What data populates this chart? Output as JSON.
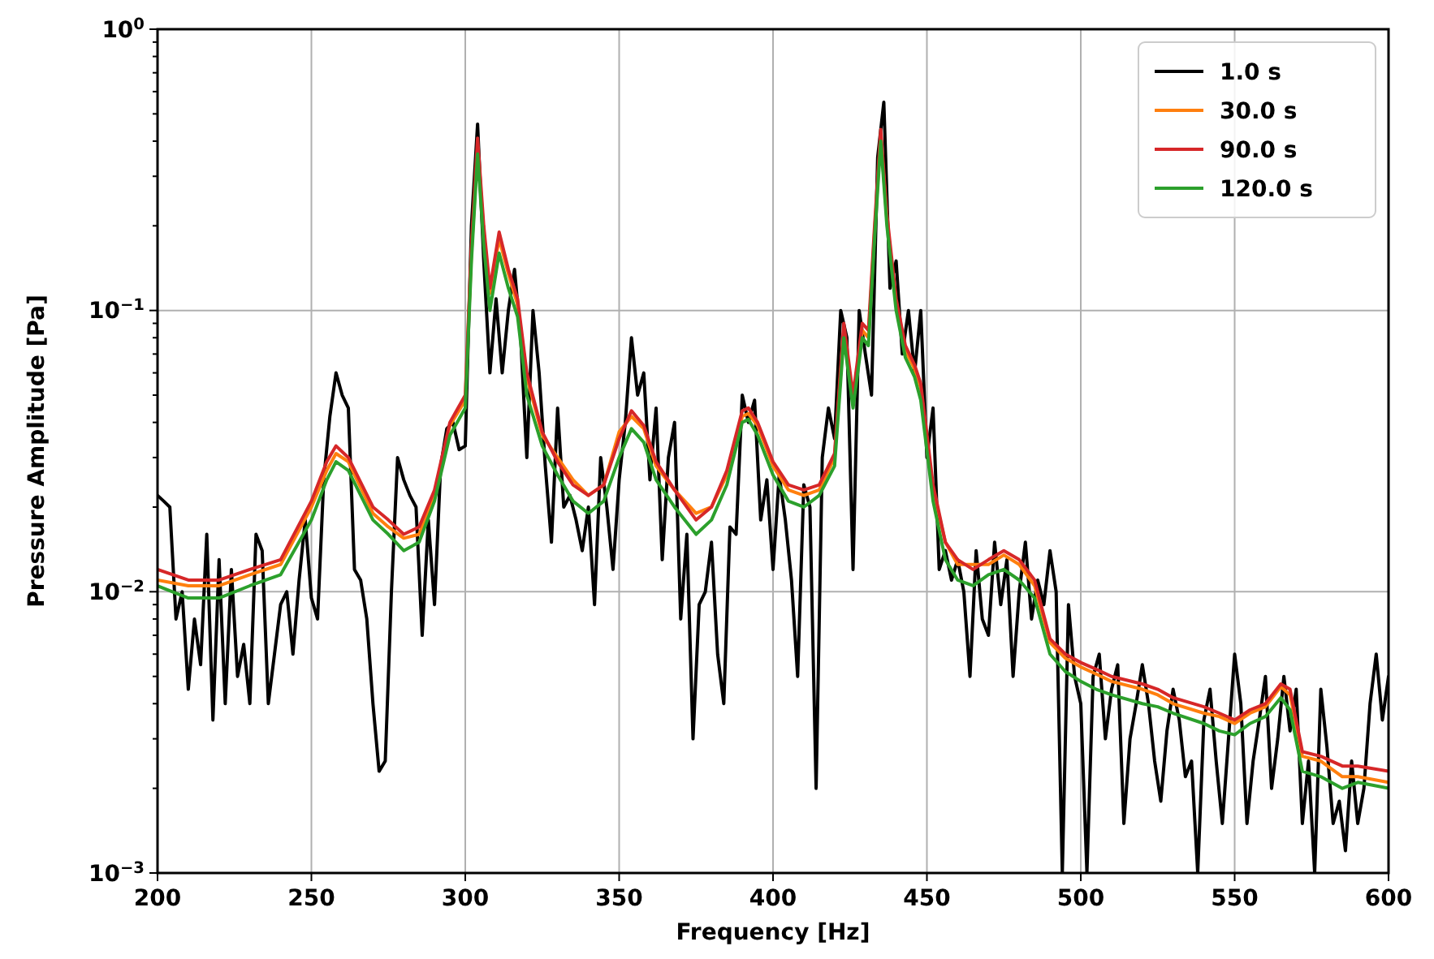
{
  "chart_data": {
    "type": "line",
    "xlabel": "Frequency [Hz]",
    "ylabel": "Pressure Amplitude [Pa]",
    "log": "y",
    "grid": true,
    "legend": "top right",
    "line_style": "solid",
    "xlim": [
      200,
      600
    ],
    "xticks": [
      200,
      250,
      300,
      350,
      400,
      450,
      500,
      550,
      600
    ],
    "ylim": [
      0.001,
      1
    ],
    "yticks": [
      {
        "value": 0.001,
        "label": "10$^{−3}$"
      },
      {
        "value": 0.002,
        "label": null
      },
      {
        "value": 0.003,
        "label": null
      },
      {
        "value": 0.004,
        "label": null
      },
      {
        "value": 0.005,
        "label": null
      },
      {
        "value": 0.006,
        "label": null
      },
      {
        "value": 0.007,
        "label": null
      },
      {
        "value": 0.008,
        "label": null
      },
      {
        "value": 0.009,
        "label": null
      },
      {
        "value": 0.01,
        "label": "10$^{−2}$"
      },
      {
        "value": 0.02,
        "label": null
      },
      {
        "value": 0.03,
        "label": null
      },
      {
        "value": 0.04,
        "label": null
      },
      {
        "value": 0.05,
        "label": null
      },
      {
        "value": 0.06,
        "label": null
      },
      {
        "value": 0.07,
        "label": null
      },
      {
        "value": 0.08,
        "label": null
      },
      {
        "value": 0.09,
        "label": null
      },
      {
        "value": 0.1,
        "label": "10$^{−1}$"
      },
      {
        "value": 0.2,
        "label": null
      },
      {
        "value": 0.3,
        "label": null
      },
      {
        "value": 0.4,
        "label": null
      },
      {
        "value": 0.5,
        "label": null
      },
      {
        "value": 0.6,
        "label": null
      },
      {
        "value": 0.7,
        "label": null
      },
      {
        "value": 0.8,
        "label": null
      },
      {
        "value": 0.9,
        "label": null
      },
      {
        "value": 1,
        "label": "10$^{0}$"
      }
    ],
    "series": [
      {
        "name": "1.0 s",
        "color": "#000000",
        "x": [
          200,
          202,
          204,
          206,
          208,
          210,
          212,
          214,
          216,
          218,
          220,
          222,
          224,
          226,
          228,
          230,
          232,
          234,
          236,
          238,
          240,
          242,
          244,
          246,
          248,
          250,
          252,
          254,
          256,
          258,
          260,
          262,
          264,
          266,
          268,
          270,
          272,
          274,
          276,
          278,
          280,
          282,
          284,
          286,
          288,
          290,
          292,
          294,
          296,
          298,
          300,
          302,
          304,
          306,
          308,
          310,
          312,
          314,
          316,
          318,
          320,
          322,
          324,
          326,
          328,
          330,
          332,
          334,
          336,
          338,
          340,
          342,
          344,
          346,
          348,
          350,
          352,
          354,
          356,
          358,
          360,
          362,
          364,
          366,
          368,
          370,
          372,
          374,
          376,
          378,
          380,
          382,
          384,
          386,
          388,
          390,
          392,
          394,
          396,
          398,
          400,
          402,
          404,
          406,
          408,
          410,
          412,
          414,
          416,
          418,
          420,
          422,
          424,
          426,
          428,
          430,
          432,
          434,
          436,
          438,
          440,
          442,
          444,
          446,
          448,
          450,
          452,
          454,
          456,
          458,
          460,
          462,
          464,
          466,
          468,
          470,
          472,
          474,
          476,
          478,
          480,
          482,
          484,
          486,
          488,
          490,
          492,
          494,
          496,
          498,
          500,
          502,
          504,
          506,
          508,
          510,
          512,
          514,
          516,
          518,
          520,
          522,
          524,
          526,
          528,
          530,
          532,
          534,
          536,
          538,
          540,
          542,
          544,
          546,
          548,
          550,
          552,
          554,
          556,
          558,
          560,
          562,
          564,
          566,
          568,
          570,
          572,
          574,
          576,
          578,
          580,
          582,
          584,
          586,
          588,
          590,
          592,
          594,
          596,
          598,
          600
        ],
        "values": [
          0.022,
          0.021,
          0.02,
          0.008,
          0.01,
          0.0045,
          0.008,
          0.0055,
          0.016,
          0.0035,
          0.013,
          0.004,
          0.012,
          0.005,
          0.0065,
          0.004,
          0.016,
          0.014,
          0.004,
          0.006,
          0.009,
          0.01,
          0.006,
          0.011,
          0.018,
          0.0095,
          0.008,
          0.025,
          0.042,
          0.06,
          0.05,
          0.045,
          0.012,
          0.011,
          0.008,
          0.004,
          0.0023,
          0.0025,
          0.01,
          0.03,
          0.025,
          0.022,
          0.02,
          0.007,
          0.018,
          0.009,
          0.028,
          0.038,
          0.04,
          0.032,
          0.033,
          0.2,
          0.46,
          0.15,
          0.06,
          0.11,
          0.06,
          0.1,
          0.14,
          0.08,
          0.03,
          0.1,
          0.06,
          0.028,
          0.015,
          0.045,
          0.02,
          0.022,
          0.018,
          0.014,
          0.02,
          0.009,
          0.03,
          0.02,
          0.012,
          0.025,
          0.04,
          0.08,
          0.05,
          0.06,
          0.025,
          0.045,
          0.013,
          0.03,
          0.04,
          0.008,
          0.016,
          0.003,
          0.009,
          0.01,
          0.015,
          0.006,
          0.004,
          0.017,
          0.016,
          0.05,
          0.04,
          0.048,
          0.018,
          0.025,
          0.012,
          0.026,
          0.018,
          0.011,
          0.005,
          0.024,
          0.02,
          0.002,
          0.03,
          0.045,
          0.035,
          0.1,
          0.08,
          0.012,
          0.1,
          0.07,
          0.05,
          0.35,
          0.55,
          0.12,
          0.15,
          0.07,
          0.1,
          0.06,
          0.1,
          0.03,
          0.045,
          0.012,
          0.014,
          0.011,
          0.013,
          0.01,
          0.005,
          0.014,
          0.008,
          0.007,
          0.015,
          0.009,
          0.013,
          0.005,
          0.01,
          0.015,
          0.008,
          0.011,
          0.009,
          0.014,
          0.01,
          0.001,
          0.009,
          0.005,
          0.004,
          0.001,
          0.005,
          0.006,
          0.003,
          0.0045,
          0.0055,
          0.0015,
          0.003,
          0.004,
          0.0055,
          0.004,
          0.0025,
          0.0018,
          0.0032,
          0.0045,
          0.0035,
          0.0022,
          0.0025,
          0.001,
          0.0035,
          0.0045,
          0.0025,
          0.0015,
          0.003,
          0.006,
          0.004,
          0.0015,
          0.0025,
          0.0035,
          0.005,
          0.002,
          0.003,
          0.005,
          0.0032,
          0.0045,
          0.0015,
          0.0025,
          0.001,
          0.0045,
          0.0028,
          0.0015,
          0.0018,
          0.0012,
          0.0025,
          0.0015,
          0.002,
          0.004,
          0.006,
          0.0035,
          0.005
        ]
      },
      {
        "name": "30.0 s",
        "color": "#ff7f0e",
        "x": [
          200,
          210,
          220,
          230,
          240,
          250,
          255,
          258,
          262,
          270,
          275,
          280,
          285,
          290,
          295,
          300,
          302,
          304,
          306,
          308,
          311,
          314,
          317,
          320,
          325,
          330,
          335,
          340,
          345,
          350,
          354,
          358,
          362,
          368,
          375,
          380,
          385,
          390,
          392,
          395,
          400,
          405,
          410,
          415,
          420,
          423,
          426,
          429,
          431,
          433,
          435,
          437,
          440,
          443,
          446,
          448,
          452,
          456,
          460,
          465,
          470,
          475,
          480,
          485,
          490,
          495,
          500,
          505,
          510,
          520,
          525,
          530,
          540,
          545,
          550,
          555,
          560,
          565,
          568,
          572,
          578,
          585,
          590,
          600
        ],
        "values": [
          0.011,
          0.0105,
          0.0105,
          0.0115,
          0.0125,
          0.02,
          0.027,
          0.031,
          0.029,
          0.019,
          0.017,
          0.0155,
          0.016,
          0.022,
          0.039,
          0.048,
          0.16,
          0.38,
          0.19,
          0.115,
          0.18,
          0.135,
          0.105,
          0.058,
          0.036,
          0.03,
          0.025,
          0.022,
          0.024,
          0.037,
          0.042,
          0.038,
          0.028,
          0.023,
          0.019,
          0.02,
          0.026,
          0.042,
          0.043,
          0.039,
          0.028,
          0.023,
          0.022,
          0.023,
          0.03,
          0.085,
          0.048,
          0.085,
          0.08,
          0.19,
          0.42,
          0.21,
          0.105,
          0.072,
          0.062,
          0.053,
          0.023,
          0.015,
          0.0125,
          0.0125,
          0.0125,
          0.0135,
          0.0125,
          0.0105,
          0.0066,
          0.0058,
          0.0054,
          0.0051,
          0.0048,
          0.0045,
          0.0043,
          0.004,
          0.0037,
          0.0036,
          0.0034,
          0.0037,
          0.0039,
          0.0046,
          0.0043,
          0.0026,
          0.0025,
          0.0022,
          0.0022,
          0.0021
        ]
      },
      {
        "name": "90.0 s",
        "color": "#d62728",
        "x": [
          200,
          210,
          220,
          230,
          240,
          250,
          255,
          258,
          262,
          270,
          275,
          280,
          285,
          290,
          295,
          300,
          302,
          304,
          306,
          308,
          311,
          314,
          317,
          320,
          325,
          330,
          335,
          340,
          345,
          350,
          354,
          358,
          362,
          368,
          375,
          380,
          385,
          390,
          392,
          395,
          400,
          405,
          410,
          415,
          420,
          423,
          426,
          429,
          431,
          433,
          435,
          437,
          440,
          443,
          446,
          448,
          452,
          456,
          460,
          465,
          470,
          475,
          480,
          485,
          490,
          495,
          500,
          505,
          510,
          520,
          525,
          530,
          540,
          545,
          550,
          555,
          560,
          565,
          568,
          572,
          578,
          585,
          590,
          600
        ],
        "values": [
          0.012,
          0.011,
          0.011,
          0.012,
          0.013,
          0.021,
          0.029,
          0.033,
          0.03,
          0.02,
          0.018,
          0.016,
          0.017,
          0.023,
          0.04,
          0.05,
          0.17,
          0.41,
          0.2,
          0.12,
          0.19,
          0.14,
          0.11,
          0.06,
          0.037,
          0.029,
          0.024,
          0.022,
          0.024,
          0.035,
          0.044,
          0.039,
          0.029,
          0.023,
          0.018,
          0.02,
          0.027,
          0.044,
          0.045,
          0.04,
          0.029,
          0.024,
          0.023,
          0.024,
          0.031,
          0.09,
          0.05,
          0.09,
          0.085,
          0.2,
          0.44,
          0.22,
          0.11,
          0.075,
          0.064,
          0.055,
          0.024,
          0.015,
          0.013,
          0.012,
          0.013,
          0.014,
          0.013,
          0.011,
          0.0068,
          0.006,
          0.0056,
          0.0053,
          0.005,
          0.0047,
          0.0045,
          0.0042,
          0.0039,
          0.0037,
          0.0035,
          0.0038,
          0.004,
          0.0047,
          0.0045,
          0.0027,
          0.0026,
          0.0024,
          0.0024,
          0.0023
        ]
      },
      {
        "name": "120.0 s",
        "color": "#2ca02c",
        "x": [
          200,
          210,
          220,
          230,
          240,
          250,
          255,
          258,
          262,
          270,
          275,
          280,
          285,
          290,
          295,
          300,
          302,
          304,
          306,
          308,
          311,
          314,
          317,
          320,
          325,
          330,
          335,
          340,
          345,
          350,
          354,
          358,
          362,
          368,
          375,
          380,
          385,
          390,
          392,
          395,
          400,
          405,
          410,
          415,
          420,
          423,
          426,
          429,
          431,
          433,
          435,
          437,
          440,
          443,
          446,
          448,
          452,
          456,
          460,
          465,
          470,
          475,
          480,
          485,
          490,
          495,
          500,
          505,
          510,
          520,
          525,
          530,
          540,
          545,
          550,
          555,
          560,
          565,
          568,
          572,
          578,
          585,
          590,
          600
        ],
        "values": [
          0.0105,
          0.0095,
          0.0095,
          0.0105,
          0.0115,
          0.018,
          0.025,
          0.029,
          0.027,
          0.018,
          0.016,
          0.014,
          0.015,
          0.021,
          0.036,
          0.045,
          0.15,
          0.36,
          0.17,
          0.1,
          0.16,
          0.12,
          0.095,
          0.05,
          0.033,
          0.026,
          0.021,
          0.019,
          0.021,
          0.03,
          0.038,
          0.034,
          0.025,
          0.02,
          0.016,
          0.018,
          0.024,
          0.04,
          0.041,
          0.036,
          0.026,
          0.021,
          0.02,
          0.022,
          0.028,
          0.08,
          0.045,
          0.08,
          0.075,
          0.18,
          0.4,
          0.2,
          0.1,
          0.068,
          0.058,
          0.048,
          0.021,
          0.013,
          0.011,
          0.0105,
          0.0115,
          0.012,
          0.011,
          0.0095,
          0.006,
          0.0052,
          0.0048,
          0.0045,
          0.0043,
          0.004,
          0.0039,
          0.0037,
          0.0034,
          0.0032,
          0.0031,
          0.0034,
          0.0036,
          0.0042,
          0.0038,
          0.0023,
          0.0022,
          0.002,
          0.0021,
          0.002
        ]
      }
    ]
  }
}
